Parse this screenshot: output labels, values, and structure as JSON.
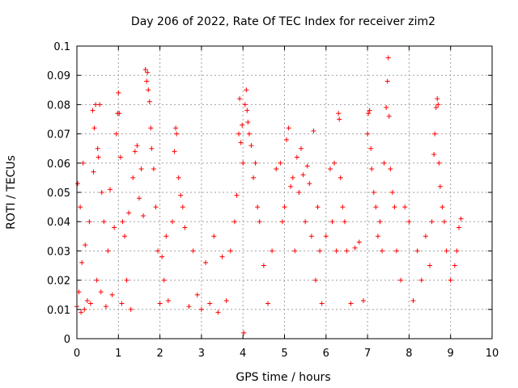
{
  "chart_data": {
    "type": "scatter",
    "title": "Day 206 of 2022, Rate Of TEC Index for receiver zim2",
    "xlabel": "GPS time / hours",
    "ylabel": "ROTI / TECUs",
    "xlim": [
      0,
      10
    ],
    "ylim": [
      0,
      0.1
    ],
    "x_ticks": [
      "0",
      "1",
      "2",
      "3",
      "4",
      "5",
      "6",
      "7",
      "8",
      "9",
      "10"
    ],
    "y_ticks": [
      "0",
      "0.01",
      "0.02",
      "0.03",
      "0.04",
      "0.05",
      "0.06",
      "0.07",
      "0.08",
      "0.09",
      "0.1"
    ],
    "grid": true,
    "marker": "+",
    "color": "#ff0000",
    "x_range_of_data": [
      0,
      9.3
    ],
    "series": [
      {
        "name": "zim2",
        "points": [
          [
            0.0,
            0.011
          ],
          [
            0.02,
            0.053
          ],
          [
            0.05,
            0.016
          ],
          [
            0.08,
            0.045
          ],
          [
            0.1,
            0.009
          ],
          [
            0.12,
            0.026
          ],
          [
            0.15,
            0.06
          ],
          [
            0.18,
            0.01
          ],
          [
            0.2,
            0.032
          ],
          [
            0.25,
            0.013
          ],
          [
            0.3,
            0.04
          ],
          [
            0.33,
            0.012
          ],
          [
            0.38,
            0.078
          ],
          [
            0.4,
            0.057
          ],
          [
            0.42,
            0.072
          ],
          [
            0.45,
            0.08
          ],
          [
            0.48,
            0.02
          ],
          [
            0.5,
            0.065
          ],
          [
            0.52,
            0.062
          ],
          [
            0.55,
            0.08
          ],
          [
            0.58,
            0.016
          ],
          [
            0.6,
            0.05
          ],
          [
            0.65,
            0.04
          ],
          [
            0.7,
            0.011
          ],
          [
            0.75,
            0.03
          ],
          [
            0.8,
            0.051
          ],
          [
            0.85,
            0.015
          ],
          [
            0.9,
            0.038
          ],
          [
            0.95,
            0.07
          ],
          [
            0.98,
            0.077
          ],
          [
            1.0,
            0.084
          ],
          [
            1.02,
            0.077
          ],
          [
            1.05,
            0.062
          ],
          [
            1.08,
            0.012
          ],
          [
            1.1,
            0.04
          ],
          [
            1.15,
            0.035
          ],
          [
            1.2,
            0.02
          ],
          [
            1.25,
            0.043
          ],
          [
            1.3,
            0.01
          ],
          [
            1.35,
            0.055
          ],
          [
            1.4,
            0.064
          ],
          [
            1.45,
            0.066
          ],
          [
            1.5,
            0.048
          ],
          [
            1.55,
            0.058
          ],
          [
            1.6,
            0.042
          ],
          [
            1.65,
            0.092
          ],
          [
            1.68,
            0.088
          ],
          [
            1.7,
            0.091
          ],
          [
            1.72,
            0.085
          ],
          [
            1.75,
            0.081
          ],
          [
            1.78,
            0.072
          ],
          [
            1.8,
            0.065
          ],
          [
            1.85,
            0.058
          ],
          [
            1.9,
            0.045
          ],
          [
            1.95,
            0.03
          ],
          [
            2.0,
            0.012
          ],
          [
            2.05,
            0.028
          ],
          [
            2.1,
            0.02
          ],
          [
            2.15,
            0.035
          ],
          [
            2.2,
            0.013
          ],
          [
            2.3,
            0.04
          ],
          [
            2.35,
            0.064
          ],
          [
            2.38,
            0.072
          ],
          [
            2.4,
            0.07
          ],
          [
            2.45,
            0.055
          ],
          [
            2.5,
            0.049
          ],
          [
            2.55,
            0.045
          ],
          [
            2.6,
            0.038
          ],
          [
            2.7,
            0.011
          ],
          [
            2.8,
            0.03
          ],
          [
            2.9,
            0.015
          ],
          [
            3.0,
            0.01
          ],
          [
            3.1,
            0.026
          ],
          [
            3.2,
            0.012
          ],
          [
            3.3,
            0.035
          ],
          [
            3.4,
            0.009
          ],
          [
            3.5,
            0.028
          ],
          [
            3.6,
            0.013
          ],
          [
            3.7,
            0.03
          ],
          [
            3.8,
            0.04
          ],
          [
            3.85,
            0.049
          ],
          [
            3.9,
            0.07
          ],
          [
            3.92,
            0.082
          ],
          [
            3.95,
            0.067
          ],
          [
            3.98,
            0.073
          ],
          [
            4.0,
            0.06
          ],
          [
            4.02,
            0.002
          ],
          [
            4.05,
            0.08
          ],
          [
            4.08,
            0.085
          ],
          [
            4.1,
            0.078
          ],
          [
            4.12,
            0.074
          ],
          [
            4.15,
            0.07
          ],
          [
            4.2,
            0.066
          ],
          [
            4.25,
            0.055
          ],
          [
            4.3,
            0.06
          ],
          [
            4.35,
            0.045
          ],
          [
            4.4,
            0.04
          ],
          [
            4.5,
            0.025
          ],
          [
            4.6,
            0.012
          ],
          [
            4.7,
            0.03
          ],
          [
            4.8,
            0.058
          ],
          [
            4.9,
            0.06
          ],
          [
            4.95,
            0.04
          ],
          [
            5.0,
            0.045
          ],
          [
            5.05,
            0.068
          ],
          [
            5.1,
            0.072
          ],
          [
            5.15,
            0.052
          ],
          [
            5.2,
            0.055
          ],
          [
            5.25,
            0.03
          ],
          [
            5.3,
            0.062
          ],
          [
            5.35,
            0.05
          ],
          [
            5.4,
            0.065
          ],
          [
            5.45,
            0.056
          ],
          [
            5.5,
            0.04
          ],
          [
            5.55,
            0.059
          ],
          [
            5.6,
            0.053
          ],
          [
            5.65,
            0.035
          ],
          [
            5.7,
            0.071
          ],
          [
            5.75,
            0.02
          ],
          [
            5.8,
            0.045
          ],
          [
            5.85,
            0.03
          ],
          [
            5.9,
            0.012
          ],
          [
            6.0,
            0.035
          ],
          [
            6.1,
            0.058
          ],
          [
            6.15,
            0.04
          ],
          [
            6.2,
            0.06
          ],
          [
            6.25,
            0.03
          ],
          [
            6.3,
            0.077
          ],
          [
            6.32,
            0.075
          ],
          [
            6.35,
            0.055
          ],
          [
            6.4,
            0.045
          ],
          [
            6.45,
            0.04
          ],
          [
            6.5,
            0.03
          ],
          [
            6.6,
            0.012
          ],
          [
            6.7,
            0.031
          ],
          [
            6.8,
            0.033
          ],
          [
            6.9,
            0.013
          ],
          [
            7.0,
            0.07
          ],
          [
            7.02,
            0.077
          ],
          [
            7.05,
            0.078
          ],
          [
            7.08,
            0.065
          ],
          [
            7.1,
            0.058
          ],
          [
            7.15,
            0.05
          ],
          [
            7.2,
            0.045
          ],
          [
            7.25,
            0.035
          ],
          [
            7.3,
            0.04
          ],
          [
            7.35,
            0.03
          ],
          [
            7.4,
            0.06
          ],
          [
            7.45,
            0.079
          ],
          [
            7.48,
            0.088
          ],
          [
            7.5,
            0.096
          ],
          [
            7.52,
            0.076
          ],
          [
            7.55,
            0.058
          ],
          [
            7.6,
            0.05
          ],
          [
            7.65,
            0.045
          ],
          [
            7.7,
            0.03
          ],
          [
            7.8,
            0.02
          ],
          [
            7.9,
            0.045
          ],
          [
            8.0,
            0.04
          ],
          [
            8.1,
            0.013
          ],
          [
            8.2,
            0.03
          ],
          [
            8.3,
            0.02
          ],
          [
            8.4,
            0.035
          ],
          [
            8.5,
            0.025
          ],
          [
            8.55,
            0.04
          ],
          [
            8.6,
            0.063
          ],
          [
            8.62,
            0.07
          ],
          [
            8.65,
            0.079
          ],
          [
            8.68,
            0.082
          ],
          [
            8.7,
            0.08
          ],
          [
            8.72,
            0.06
          ],
          [
            8.75,
            0.052
          ],
          [
            8.8,
            0.045
          ],
          [
            8.85,
            0.04
          ],
          [
            8.9,
            0.03
          ],
          [
            9.0,
            0.02
          ],
          [
            9.1,
            0.025
          ],
          [
            9.15,
            0.03
          ],
          [
            9.2,
            0.038
          ],
          [
            9.25,
            0.041
          ]
        ]
      }
    ]
  }
}
